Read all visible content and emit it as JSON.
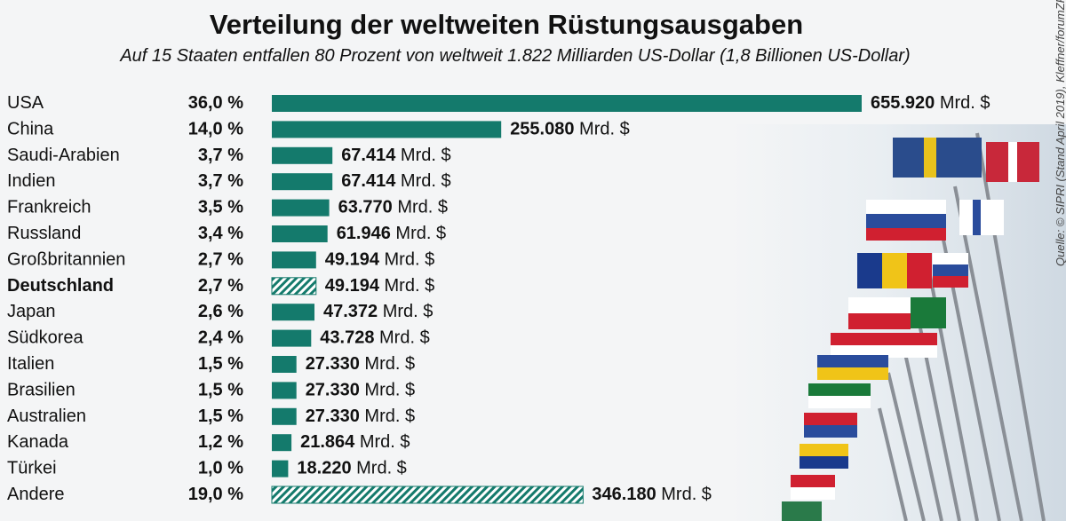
{
  "header": {
    "title": "Verteilung der weltweiten Rüstungsausgaben",
    "subtitle": "Auf 15 Staaten entfallen 80 Prozent von weltweit 1.822 Milliarden US-Dollar (1,8 Billionen US-Dollar)"
  },
  "source": "Quelle: © SIPRI (Stand April 2019), Kleffner/forumZFD",
  "colors": {
    "bar": "#147a6c",
    "text": "#111111",
    "background": "#f4f5f6"
  },
  "chart_data": {
    "type": "bar",
    "orientation": "horizontal",
    "value_unit": "Mrd. $",
    "categories": [
      "USA",
      "China",
      "Saudi-Arabien",
      "Indien",
      "Frankreich",
      "Russland",
      "Großbritannien",
      "Deutschland",
      "Japan",
      "Südkorea",
      "Italien",
      "Brasilien",
      "Australien",
      "Kanada",
      "Türkei",
      "Andere"
    ],
    "percent_labels": [
      "36,0 %",
      "14,0 %",
      "3,7 %",
      "3,7 %",
      "3,5 %",
      "3,4 %",
      "2,7 %",
      "2,7 %",
      "2,6 %",
      "2,4 %",
      "1,5 %",
      "1,5 %",
      "1,5 %",
      "1,2 %",
      "1,0 %",
      "19,0 %"
    ],
    "amount_numbers": [
      "655.920",
      "255.080",
      "67.414",
      "67.414",
      "63.770",
      "61.946",
      "49.194",
      "49.194",
      "47.372",
      "43.728",
      "27.330",
      "27.330",
      "27.330",
      "21.864",
      "18.220",
      "346.180"
    ],
    "values": [
      655920,
      255080,
      67414,
      67414,
      63770,
      61946,
      49194,
      49194,
      47372,
      43728,
      27330,
      27330,
      27330,
      21864,
      18220,
      346180
    ],
    "highlighted": [
      "Deutschland"
    ],
    "hatched": [
      "Deutschland",
      "Andere"
    ]
  }
}
